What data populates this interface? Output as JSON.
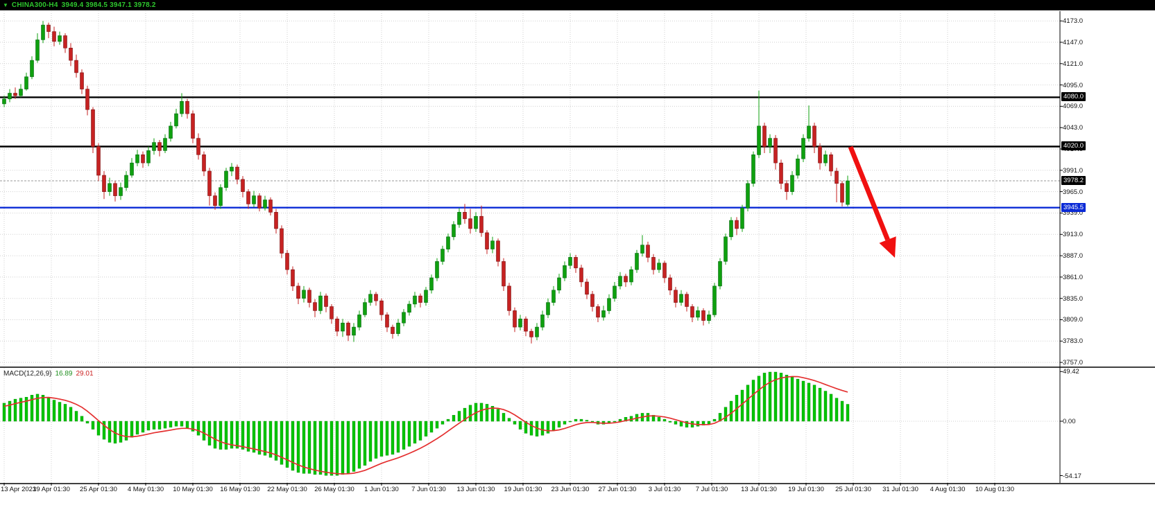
{
  "topbar": {
    "symbol": "CHINA300-H4",
    "ohlc": "3949.4 3984.5 3947.1 3978.2"
  },
  "macd_panel": {
    "label": "MACD(12,26,9)",
    "main_value": "16.89",
    "signal_value": "29.01",
    "axis_labels": [
      "49.42",
      "0.00",
      "-54.17"
    ],
    "axis_values": [
      49.42,
      0,
      -54.17
    ]
  },
  "price_axis": {
    "tick_labels": [
      "4173.0",
      "4147.0",
      "4121.0",
      "4095.0",
      "4069.0",
      "4043.0",
      "4017.0",
      "3991.0",
      "3965.0",
      "3939.0",
      "3913.0",
      "3887.0",
      "3861.0",
      "3835.0",
      "3809.0",
      "3783.0",
      "3757.0"
    ],
    "tick_values": [
      4173,
      4147,
      4121,
      4095,
      4069,
      4043,
      4017,
      3991,
      3965,
      3939,
      3913,
      3887,
      3861,
      3835,
      3809,
      3783,
      3757
    ],
    "special_labels": [
      {
        "text": "4080.0",
        "value": 4080.0,
        "type": "level-black"
      },
      {
        "text": "4020.0",
        "value": 4020.0,
        "type": "level-black"
      },
      {
        "text": "3978.2",
        "value": 3978.2,
        "type": "level-black"
      },
      {
        "text": "3945.5",
        "value": 3945.5,
        "type": "level-blue"
      }
    ]
  },
  "time_axis": {
    "labels": [
      "13 Apr 2023",
      "19 Apr 01:30",
      "25 Apr 01:30",
      "4 May 01:30",
      "10 May 01:30",
      "16 May 01:30",
      "22 May 01:30",
      "26 May 01:30",
      "1 Jun 01:30",
      "7 Jun 01:30",
      "13 Jun 01:30",
      "19 Jun 01:30",
      "23 Jun 01:30",
      "27 Jun 01:30",
      "3 Jul 01:30",
      "7 Jul 01:30",
      "13 Jul 01:30",
      "19 Jul 01:30",
      "25 Jul 01:30",
      "31 Jul 01:30",
      "4 Aug 01:30",
      "10 Aug 01:30"
    ]
  },
  "colors": {
    "bull": "#0fa00f",
    "bear": "#c62222",
    "histogram": "#00c400",
    "signal_line": "#e43030",
    "level_black": "#000000",
    "level_blue": "#0a2ad6",
    "grid": "#cfcfcf",
    "topbar_text": "#2ec72e",
    "arrow": "#f01010"
  },
  "chart_data": {
    "type": "candlestick",
    "symbol": "CHINA300-H4",
    "timeframe": "H4",
    "title": "CHINA300-H4 3949.4 3984.5 3947.1 3978.2",
    "last_ohlc": {
      "open": 3949.4,
      "high": 3984.5,
      "low": 3947.1,
      "close": 3978.2
    },
    "current_price": 3978.2,
    "ylim_main": [
      3752,
      4185
    ],
    "levels": [
      {
        "price": 4080.0,
        "color": "#000000"
      },
      {
        "price": 4020.0,
        "color": "#000000"
      },
      {
        "price": 3945.5,
        "color": "#0a2ad6"
      }
    ],
    "candles": [
      [
        4072,
        4082,
        4068,
        4078
      ],
      [
        4078,
        4090,
        4074,
        4085
      ],
      [
        4085,
        4092,
        4078,
        4082
      ],
      [
        4082,
        4096,
        4080,
        4090
      ],
      [
        4090,
        4110,
        4088,
        4105
      ],
      [
        4105,
        4130,
        4102,
        4125
      ],
      [
        4125,
        4158,
        4122,
        4150
      ],
      [
        4150,
        4173,
        4146,
        4168
      ],
      [
        4168,
        4171,
        4152,
        4160
      ],
      [
        4160,
        4166,
        4142,
        4148
      ],
      [
        4148,
        4160,
        4144,
        4155
      ],
      [
        4155,
        4158,
        4134,
        4140
      ],
      [
        4140,
        4146,
        4118,
        4125
      ],
      [
        4125,
        4132,
        4104,
        4110
      ],
      [
        4110,
        4114,
        4084,
        4090
      ],
      [
        4090,
        4094,
        4058,
        4065
      ],
      [
        4065,
        4068,
        4012,
        4020
      ],
      [
        4020,
        4024,
        3978,
        3985
      ],
      [
        3985,
        3990,
        3956,
        3965
      ],
      [
        3965,
        3982,
        3960,
        3975
      ],
      [
        3975,
        3978,
        3953,
        3960
      ],
      [
        3960,
        3976,
        3955,
        3970
      ],
      [
        3970,
        3990,
        3966,
        3985
      ],
      [
        3985,
        4006,
        3982,
        4000
      ],
      [
        4000,
        4016,
        3996,
        4010
      ],
      [
        4010,
        4014,
        3994,
        4000
      ],
      [
        4000,
        4020,
        3996,
        4015
      ],
      [
        4015,
        4030,
        4010,
        4025
      ],
      [
        4025,
        4028,
        4008,
        4015
      ],
      [
        4015,
        4035,
        4012,
        4030
      ],
      [
        4030,
        4050,
        4026,
        4045
      ],
      [
        4045,
        4066,
        4042,
        4060
      ],
      [
        4060,
        4085,
        4056,
        4075
      ],
      [
        4075,
        4078,
        4054,
        4060
      ],
      [
        4060,
        4064,
        4024,
        4030
      ],
      [
        4030,
        4036,
        4004,
        4010
      ],
      [
        4010,
        4014,
        3984,
        3990
      ],
      [
        3990,
        3994,
        3948,
        3960
      ],
      [
        3960,
        3964,
        3943,
        3948
      ],
      [
        3948,
        3974,
        3944,
        3970
      ],
      [
        3970,
        3994,
        3966,
        3990
      ],
      [
        3990,
        4000,
        3984,
        3995
      ],
      [
        3995,
        3998,
        3974,
        3980
      ],
      [
        3980,
        3984,
        3958,
        3965
      ],
      [
        3965,
        3968,
        3944,
        3950
      ],
      [
        3950,
        3966,
        3946,
        3960
      ],
      [
        3960,
        3963,
        3941,
        3945
      ],
      [
        3945,
        3960,
        3942,
        3955
      ],
      [
        3955,
        3958,
        3936,
        3940
      ],
      [
        3940,
        3944,
        3914,
        3920
      ],
      [
        3920,
        3924,
        3884,
        3890
      ],
      [
        3890,
        3894,
        3864,
        3870
      ],
      [
        3870,
        3874,
        3844,
        3850
      ],
      [
        3850,
        3854,
        3828,
        3835
      ],
      [
        3835,
        3850,
        3830,
        3845
      ],
      [
        3845,
        3848,
        3824,
        3830
      ],
      [
        3830,
        3834,
        3812,
        3820
      ],
      [
        3820,
        3843,
        3816,
        3838
      ],
      [
        3838,
        3841,
        3818,
        3825
      ],
      [
        3825,
        3828,
        3804,
        3810
      ],
      [
        3810,
        3813,
        3789,
        3795
      ],
      [
        3795,
        3810,
        3788,
        3805
      ],
      [
        3805,
        3807,
        3783,
        3790
      ],
      [
        3790,
        3805,
        3782,
        3800
      ],
      [
        3800,
        3820,
        3796,
        3815
      ],
      [
        3815,
        3835,
        3812,
        3830
      ],
      [
        3830,
        3845,
        3826,
        3840
      ],
      [
        3840,
        3843,
        3826,
        3832
      ],
      [
        3832,
        3835,
        3808,
        3815
      ],
      [
        3815,
        3818,
        3794,
        3800
      ],
      [
        3800,
        3803,
        3786,
        3792
      ],
      [
        3792,
        3810,
        3789,
        3805
      ],
      [
        3805,
        3822,
        3801,
        3818
      ],
      [
        3818,
        3832,
        3814,
        3828
      ],
      [
        3828,
        3843,
        3824,
        3838
      ],
      [
        3838,
        3841,
        3824,
        3830
      ],
      [
        3830,
        3849,
        3826,
        3845
      ],
      [
        3845,
        3864,
        3841,
        3860
      ],
      [
        3860,
        3884,
        3856,
        3880
      ],
      [
        3880,
        3899,
        3876,
        3895
      ],
      [
        3895,
        3914,
        3891,
        3910
      ],
      [
        3910,
        3929,
        3906,
        3925
      ],
      [
        3925,
        3945,
        3921,
        3940
      ],
      [
        3940,
        3950,
        3926,
        3932
      ],
      [
        3932,
        3944,
        3914,
        3920
      ],
      [
        3920,
        3940,
        3916,
        3935
      ],
      [
        3935,
        3948,
        3910,
        3915
      ],
      [
        3915,
        3918,
        3889,
        3895
      ],
      [
        3895,
        3910,
        3890,
        3905
      ],
      [
        3905,
        3908,
        3874,
        3880
      ],
      [
        3880,
        3884,
        3844,
        3850
      ],
      [
        3850,
        3854,
        3814,
        3820
      ],
      [
        3820,
        3824,
        3794,
        3800
      ],
      [
        3800,
        3815,
        3796,
        3810
      ],
      [
        3810,
        3813,
        3789,
        3795
      ],
      [
        3795,
        3798,
        3780,
        3788
      ],
      [
        3788,
        3805,
        3784,
        3800
      ],
      [
        3800,
        3820,
        3796,
        3815
      ],
      [
        3815,
        3835,
        3811,
        3830
      ],
      [
        3830,
        3850,
        3826,
        3845
      ],
      [
        3845,
        3865,
        3841,
        3860
      ],
      [
        3860,
        3880,
        3856,
        3875
      ],
      [
        3875,
        3890,
        3871,
        3885
      ],
      [
        3885,
        3888,
        3866,
        3872
      ],
      [
        3872,
        3876,
        3849,
        3855
      ],
      [
        3855,
        3859,
        3834,
        3840
      ],
      [
        3840,
        3844,
        3819,
        3825
      ],
      [
        3825,
        3828,
        3806,
        3812
      ],
      [
        3812,
        3826,
        3808,
        3820
      ],
      [
        3820,
        3840,
        3816,
        3835
      ],
      [
        3835,
        3855,
        3831,
        3850
      ],
      [
        3850,
        3867,
        3846,
        3862
      ],
      [
        3862,
        3865,
        3849,
        3855
      ],
      [
        3855,
        3874,
        3851,
        3870
      ],
      [
        3870,
        3894,
        3866,
        3890
      ],
      [
        3890,
        3912,
        3886,
        3900
      ],
      [
        3900,
        3904,
        3879,
        3885
      ],
      [
        3885,
        3889,
        3864,
        3870
      ],
      [
        3870,
        3883,
        3866,
        3878
      ],
      [
        3878,
        3881,
        3854,
        3860
      ],
      [
        3860,
        3864,
        3839,
        3845
      ],
      [
        3845,
        3849,
        3824,
        3830
      ],
      [
        3830,
        3845,
        3826,
        3840
      ],
      [
        3840,
        3843,
        3819,
        3825
      ],
      [
        3825,
        3828,
        3806,
        3812
      ],
      [
        3812,
        3825,
        3808,
        3820
      ],
      [
        3820,
        3823,
        3802,
        3808
      ],
      [
        3808,
        3820,
        3804,
        3815
      ],
      [
        3815,
        3854,
        3812,
        3850
      ],
      [
        3850,
        3884,
        3846,
        3880
      ],
      [
        3880,
        3914,
        3876,
        3910
      ],
      [
        3910,
        3934,
        3906,
        3930
      ],
      [
        3930,
        3934,
        3912,
        3920
      ],
      [
        3920,
        3949,
        3916,
        3945
      ],
      [
        3945,
        3979,
        3941,
        3975
      ],
      [
        3975,
        4014,
        3971,
        4010
      ],
      [
        4010,
        4088,
        4006,
        4045
      ],
      [
        4045,
        4049,
        4012,
        4020
      ],
      [
        4020,
        4035,
        4012,
        4030
      ],
      [
        4030,
        4034,
        3992,
        4000
      ],
      [
        4000,
        4004,
        3968,
        3975
      ],
      [
        3975,
        3979,
        3955,
        3965
      ],
      [
        3965,
        3990,
        3961,
        3985
      ],
      [
        3985,
        4010,
        3981,
        4005
      ],
      [
        4005,
        4035,
        4001,
        4030
      ],
      [
        4030,
        4070,
        4026,
        4045
      ],
      [
        4045,
        4049,
        4012,
        4020
      ],
      [
        4020,
        4024,
        3992,
        4000
      ],
      [
        4000,
        4015,
        3996,
        4010
      ],
      [
        4010,
        4013,
        3984,
        3990
      ],
      [
        3990,
        3994,
        3952,
        3975
      ],
      [
        3975,
        3978,
        3947,
        3952
      ],
      [
        3949.4,
        3984.5,
        3947.1,
        3978.2
      ]
    ],
    "macd": {
      "params": "12,26,9",
      "last_main": 16.89,
      "last_signal": 29.01,
      "ylim": [
        -54.17,
        49.42
      ],
      "histogram": [
        18,
        20,
        22,
        23,
        24,
        26,
        27,
        26,
        24,
        21,
        19,
        17,
        14,
        10,
        5,
        -2,
        -8,
        -14,
        -18,
        -21,
        -22,
        -21,
        -19,
        -16,
        -13,
        -11,
        -9,
        -8,
        -8,
        -7,
        -6,
        -5,
        -5,
        -7,
        -10,
        -14,
        -19,
        -24,
        -27,
        -28,
        -28,
        -27,
        -27,
        -28,
        -30,
        -31,
        -33,
        -34,
        -36,
        -39,
        -43,
        -46,
        -49,
        -51,
        -52,
        -52,
        -53,
        -53,
        -54,
        -54,
        -54,
        -53,
        -52,
        -50,
        -47,
        -44,
        -40,
        -37,
        -35,
        -34,
        -33,
        -31,
        -28,
        -25,
        -22,
        -19,
        -15,
        -11,
        -7,
        -3,
        2,
        6,
        10,
        13,
        16,
        18,
        18,
        17,
        15,
        12,
        8,
        3,
        -3,
        -8,
        -12,
        -14,
        -15,
        -14,
        -12,
        -9,
        -6,
        -3,
        0,
        2,
        2,
        1,
        -1,
        -3,
        -3,
        -2,
        0,
        2,
        4,
        5,
        7,
        8,
        8,
        6,
        4,
        2,
        -1,
        -3,
        -5,
        -6,
        -6,
        -5,
        -4,
        -3,
        2,
        8,
        14,
        20,
        26,
        31,
        36,
        41,
        45,
        48,
        49,
        49,
        48,
        46,
        44,
        42,
        40,
        38,
        36,
        33,
        30,
        27,
        23,
        20,
        16.89
      ],
      "signal": [
        15,
        16,
        17.5,
        18.8,
        20,
        21.5,
        22.8,
        23.6,
        23.7,
        23,
        22,
        20.8,
        19.1,
        16.8,
        13.9,
        9.9,
        5.4,
        0.6,
        -4,
        -8.3,
        -11.7,
        -14,
        -15.3,
        -15.5,
        -14.9,
        -13.9,
        -12.7,
        -11.5,
        -10.6,
        -9.7,
        -8.8,
        -7.8,
        -7.1,
        -7.1,
        -7.8,
        -9.4,
        -11.8,
        -14.8,
        -17.9,
        -20.4,
        -22.3,
        -23.5,
        -24.4,
        -25.3,
        -26.5,
        -27.6,
        -28.9,
        -30.2,
        -31.6,
        -33.5,
        -35.9,
        -38.4,
        -41,
        -43.5,
        -45.6,
        -47.2,
        -48.7,
        -49.8,
        -50.8,
        -51.6,
        -52.2,
        -52.4,
        -52.3,
        -51.7,
        -50.5,
        -48.9,
        -46.7,
        -44.3,
        -41.9,
        -39.9,
        -38.2,
        -36.4,
        -34.3,
        -32,
        -29.5,
        -26.9,
        -23.9,
        -20.7,
        -17.3,
        -13.7,
        -9.8,
        -5.8,
        -1.9,
        1.8,
        5.4,
        8.5,
        10.9,
        12.4,
        13.1,
        12.8,
        11.6,
        9.4,
        6.3,
        2.7,
        -1,
        -4.2,
        -6.9,
        -8.7,
        -9.5,
        -9.4,
        -8.6,
        -7.2,
        -5.4,
        -3.5,
        -2.1,
        -1.3,
        -1.2,
        -1.7,
        -2,
        -2,
        -1.5,
        -0.6,
        0.6,
        1.7,
        3,
        4.2,
        5.2,
        5.4,
        5,
        4.3,
        3,
        1.5,
        -0.1,
        -1.6,
        -2.7,
        -3.3,
        -3.4,
        -3.3,
        -2,
        0.5,
        3.9,
        7.9,
        12.4,
        17.1,
        21.8,
        26.6,
        31.2,
        35.4,
        38.8,
        41.4,
        43,
        44,
        44.5,
        44.4,
        43.3,
        42,
        40.5,
        38.6,
        36.5,
        34.5,
        32.5,
        30.6,
        29.01
      ]
    },
    "annotation_arrow": {
      "from": [
        1226,
        212
      ],
      "to": [
        1290,
        372
      ],
      "color": "#f01010"
    }
  }
}
